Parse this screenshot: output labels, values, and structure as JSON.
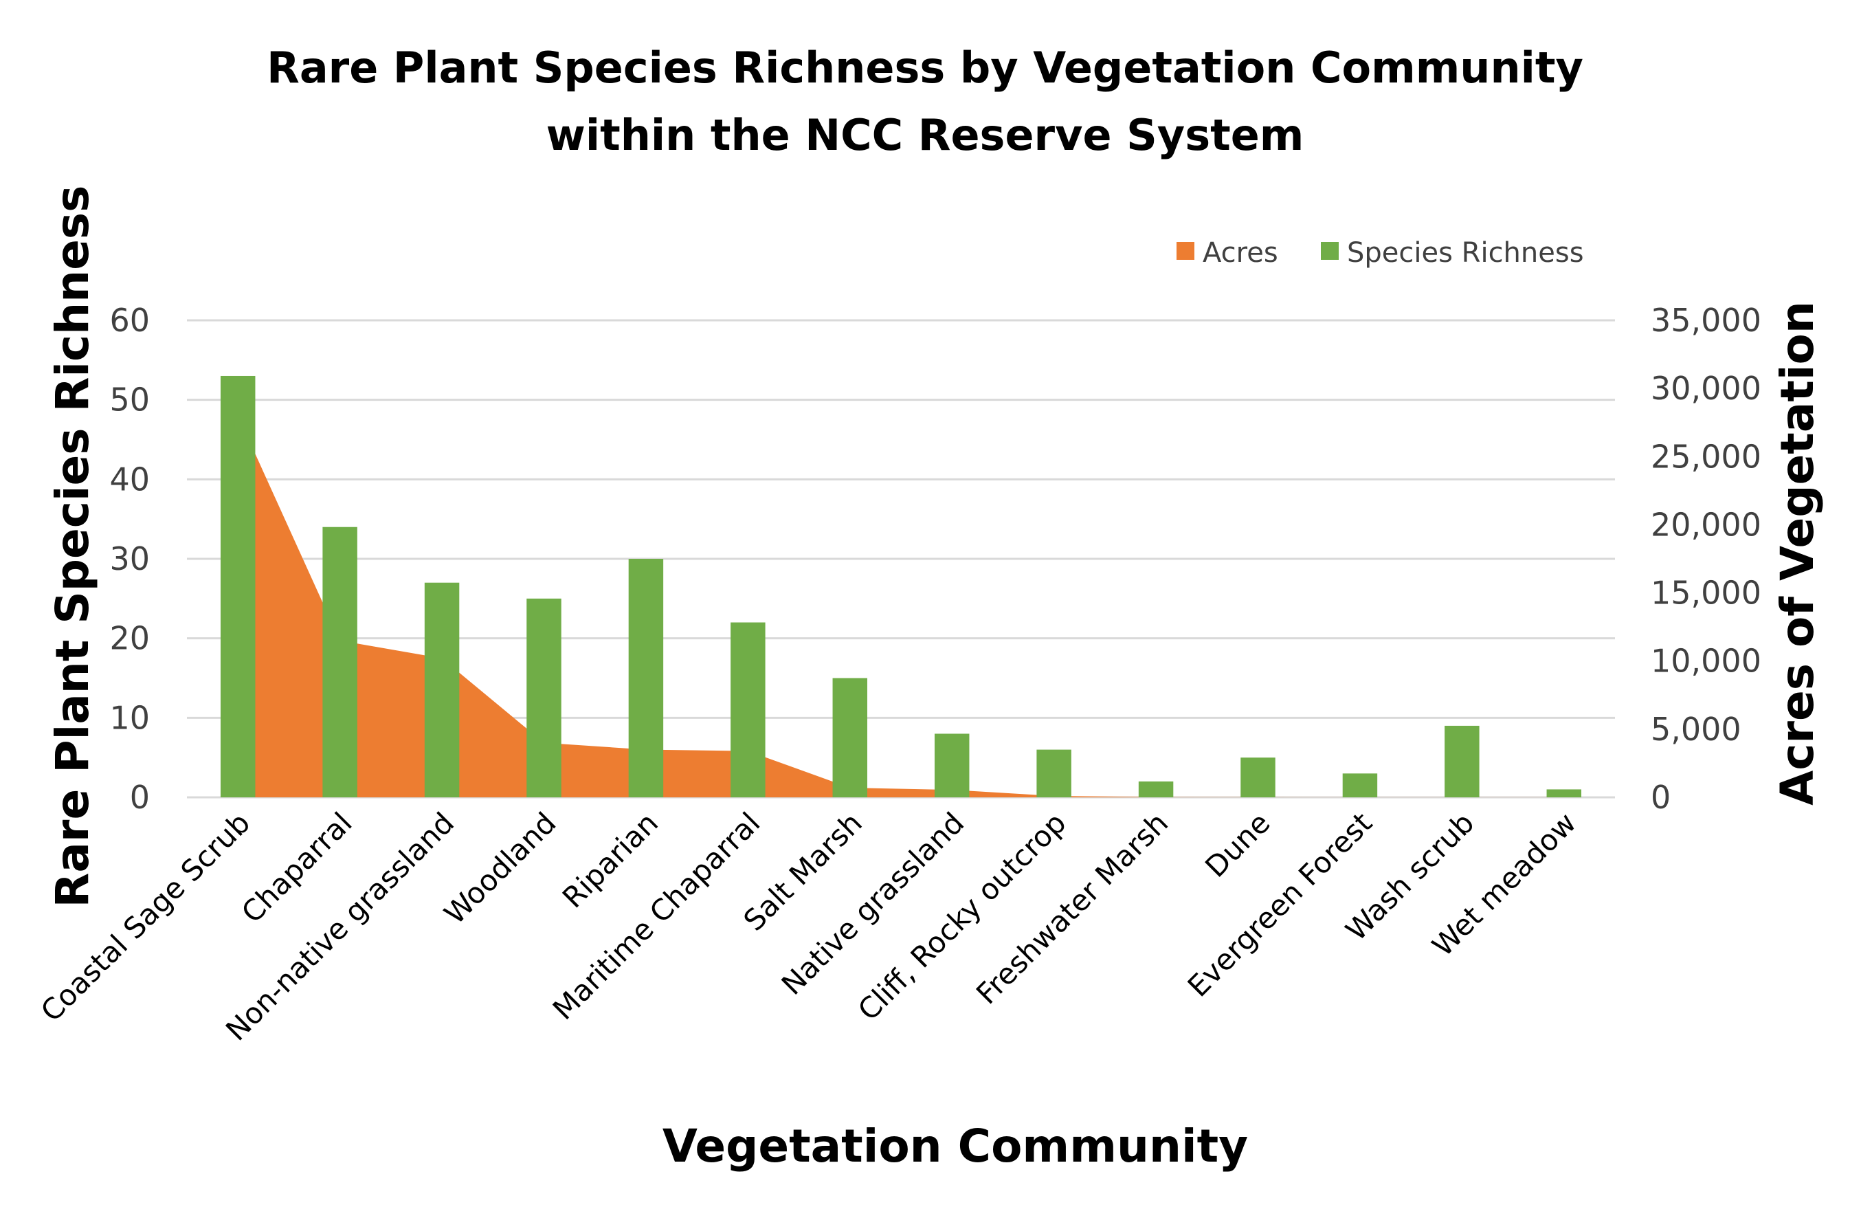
{
  "chart_data": {
    "type": "bar+area",
    "title_lines": [
      "Rare Plant Species Richness by Vegetation Community",
      "within the NCC Reserve System"
    ],
    "xlabel": "Vegetation Community",
    "ylabel": "Rare Plant Species Richness",
    "y2label": "Acres of Vegetation",
    "ylim": [
      0,
      60
    ],
    "y2lim": [
      0,
      35000
    ],
    "yticks": [
      0,
      10,
      20,
      30,
      40,
      50,
      60
    ],
    "y2ticks": [
      "0",
      "5,000",
      "10,000",
      "15,000",
      "20,000",
      "25,000",
      "30,000",
      "35,000"
    ],
    "y2tick_values": [
      0,
      5000,
      10000,
      15000,
      20000,
      25000,
      30000,
      35000
    ],
    "grid": true,
    "legend_position": "top-right",
    "categories": [
      "Coastal Sage Scrub",
      "Chaparral",
      "Non-native grassland",
      "Woodland",
      "Riparian",
      "Maritime Chaparral",
      "Salt Marsh",
      "Native grassland",
      "Cliff, Rocky outcrop",
      "Freshwater Marsh",
      "Dune",
      "Evergreen Forest",
      "Wash scrub",
      "Wet meadow"
    ],
    "series": [
      {
        "name": "Acres",
        "type": "area",
        "axis": "right",
        "color": "#ED7D31",
        "values": [
          28000,
          11500,
          10200,
          4000,
          3500,
          3400,
          700,
          550,
          100,
          20,
          10,
          5,
          5,
          5
        ]
      },
      {
        "name": "Species Richness",
        "type": "bar",
        "axis": "left",
        "color": "#70AD47",
        "values": [
          53,
          34,
          27,
          25,
          30,
          22,
          15,
          8,
          6,
          2,
          5,
          3,
          9,
          1
        ]
      }
    ]
  }
}
